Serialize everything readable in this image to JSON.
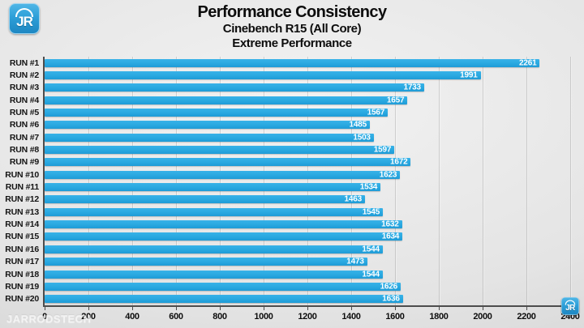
{
  "logo": {
    "text": "JR"
  },
  "header": {
    "title": "Performance Consistency",
    "subtitle1": "Cinebench R15 (All Core)",
    "subtitle2": "Extreme Performance"
  },
  "watermark": "JARRODSTECH",
  "chart_data": {
    "type": "bar",
    "orientation": "horizontal",
    "title": "Performance Consistency",
    "subtitle": "Cinebench R15 (All Core)",
    "mode_label": "Extreme Performance",
    "categories": [
      "RUN #1",
      "RUN #2",
      "RUN #3",
      "RUN #4",
      "RUN #5",
      "RUN #6",
      "RUN #7",
      "RUN #8",
      "RUN #9",
      "RUN #10",
      "RUN #11",
      "RUN #12",
      "RUN #13",
      "RUN #14",
      "RUN #15",
      "RUN #16",
      "RUN #17",
      "RUN #18",
      "RUN #19",
      "RUN #20"
    ],
    "values": [
      2261,
      1991,
      1733,
      1657,
      1567,
      1485,
      1503,
      1597,
      1672,
      1623,
      1534,
      1463,
      1545,
      1632,
      1634,
      1544,
      1473,
      1544,
      1626,
      1636
    ],
    "xlabel": "",
    "ylabel": "",
    "xlim": [
      0,
      2400
    ],
    "x_ticks": [
      0,
      200,
      400,
      600,
      800,
      1000,
      1200,
      1400,
      1600,
      1800,
      2000,
      2200,
      2400
    ],
    "grid": true,
    "legend_position": "none",
    "bar_color": "#29a8e0",
    "value_label_color": "#ffffff",
    "axis_color": "#4d4d4d"
  }
}
